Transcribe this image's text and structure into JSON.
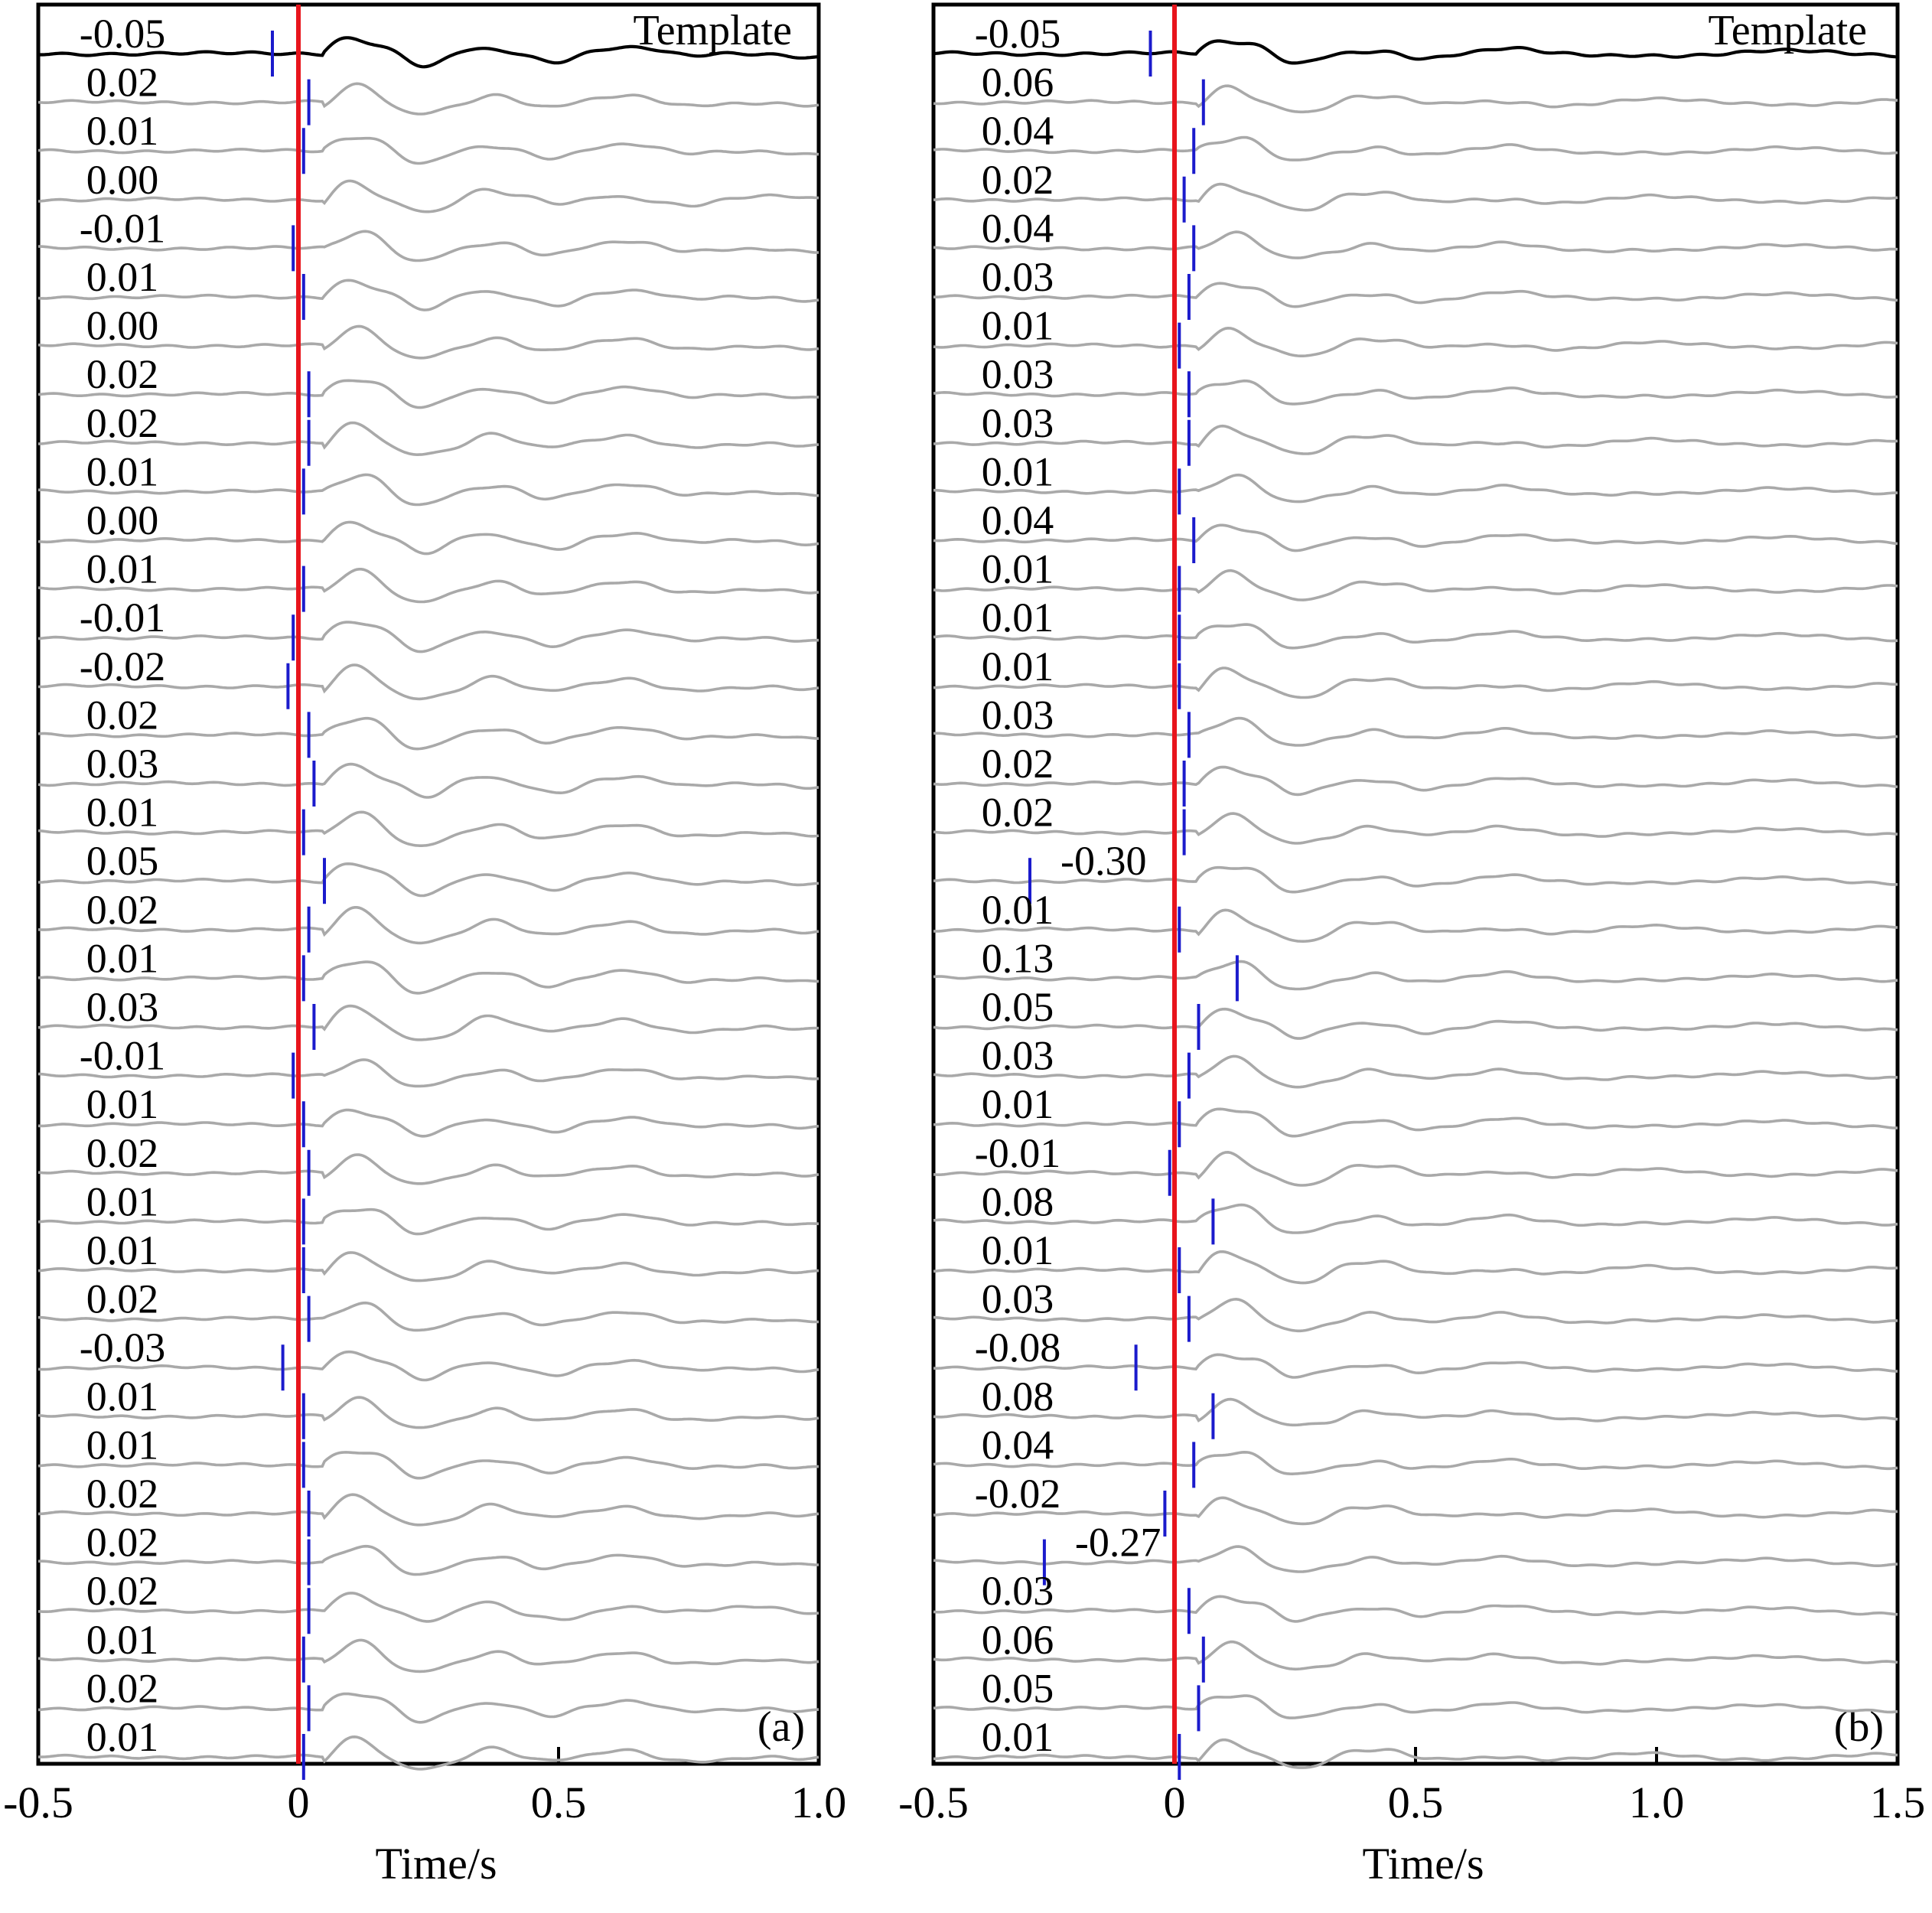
{
  "chart_data": [
    {
      "type": "line",
      "panel_label": "(a)",
      "xlabel": "Time/s",
      "xlim": [
        -0.5,
        1.0
      ],
      "xticks": [
        "-0.5",
        "0",
        "0.5",
        "1.0"
      ],
      "template_label": "Template",
      "template_shift": "-0.05",
      "trace_shifts": [
        "0.02",
        "0.01",
        "0.00",
        "-0.01",
        "0.01",
        "0.00",
        "0.02",
        "0.02",
        "0.01",
        "0.00",
        "0.01",
        "-0.01",
        "-0.02",
        "0.02",
        "0.03",
        "0.01",
        "0.05",
        "0.02",
        "0.01",
        "0.03",
        "-0.01",
        "0.01",
        "0.02",
        "0.01",
        "0.01",
        "0.02",
        "-0.03",
        "0.01",
        "0.01",
        "0.02",
        "0.02",
        "0.02",
        "0.01",
        "0.02",
        "0.01"
      ]
    },
    {
      "type": "line",
      "panel_label": "(b)",
      "xlabel": "Time/s",
      "xlim": [
        -0.5,
        1.5
      ],
      "xticks": [
        "-0.5",
        "0",
        "0.5",
        "1.0",
        "1.5"
      ],
      "template_label": "Template",
      "template_shift": "-0.05",
      "trace_shifts": [
        "0.06",
        "0.04",
        "0.02",
        "0.04",
        "0.03",
        "0.01",
        "0.03",
        "0.03",
        "0.01",
        "0.04",
        "0.01",
        "0.01",
        "0.01",
        "0.03",
        "0.02",
        "0.02",
        "-0.30",
        "0.01",
        "0.13",
        "0.05",
        "0.03",
        "0.01",
        "-0.01",
        "0.08",
        "0.01",
        "0.03",
        "-0.08",
        "0.08",
        "0.04",
        "-0.02",
        "-0.27",
        "0.03",
        "0.06",
        "0.05",
        "0.01"
      ]
    }
  ],
  "colors": {
    "template_trace": "#000000",
    "event_traces": "#a9a9a9",
    "zero_line": "#e8141c",
    "shift_markers": "#1b1bcc"
  }
}
